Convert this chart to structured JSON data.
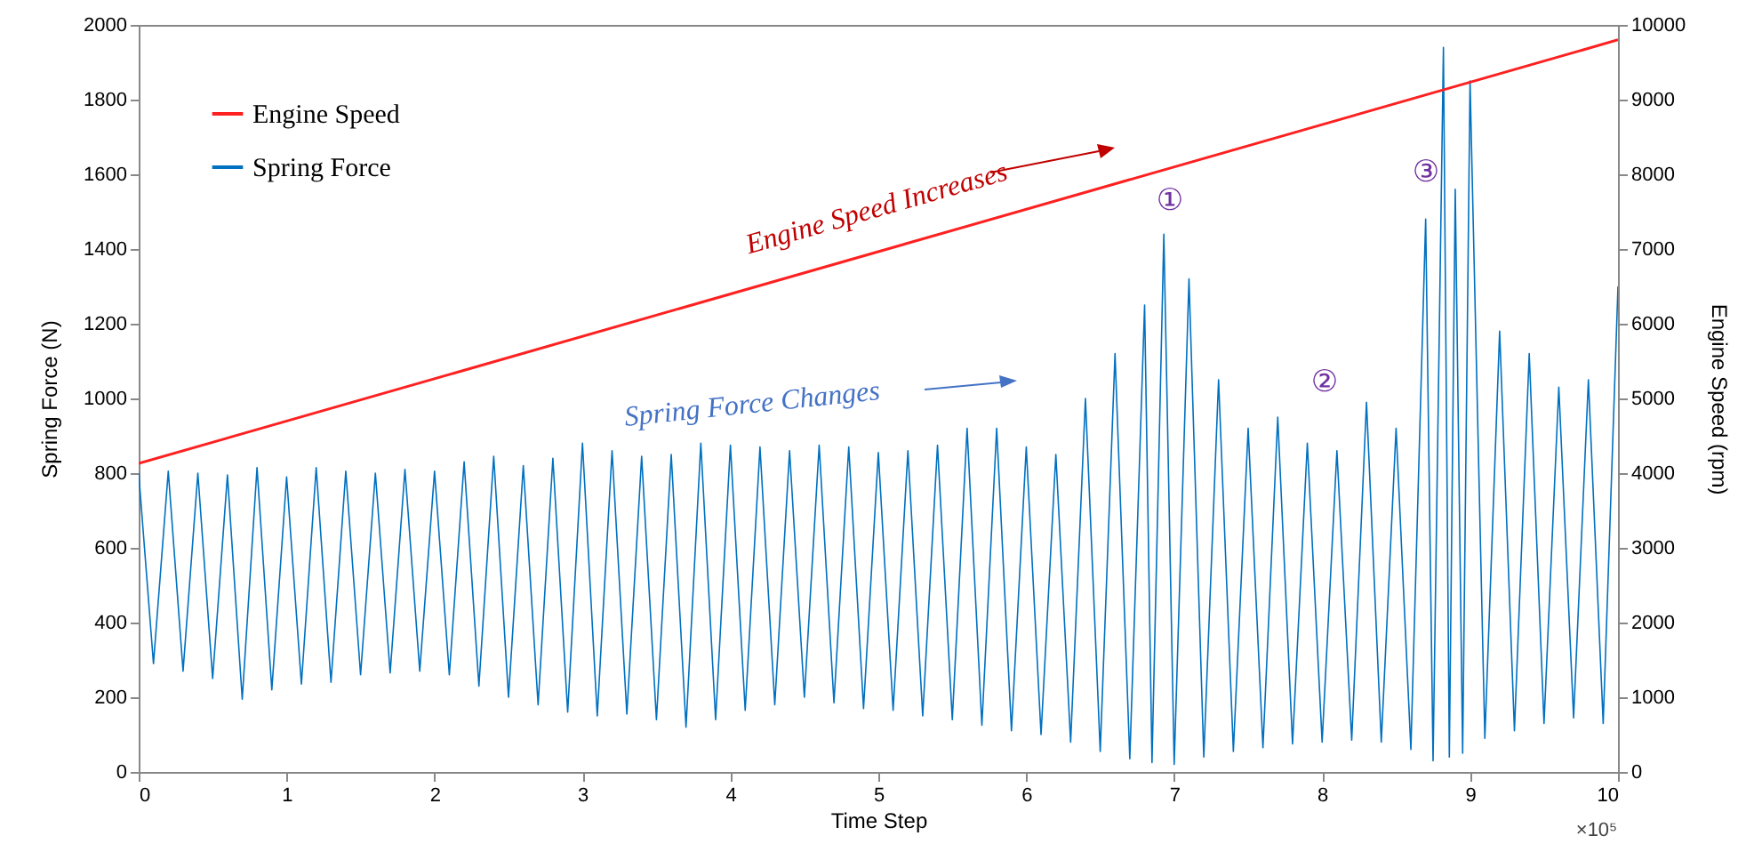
{
  "chart_data": {
    "type": "line",
    "xlabel": "Time Step",
    "ylabel": "Spring Force (N)",
    "y2label": "Engine Speed (rpm)",
    "xlim": [
      0,
      10
    ],
    "xticks": [
      0,
      1,
      2,
      3,
      4,
      5,
      6,
      7,
      8,
      9,
      10
    ],
    "ylim": [
      0,
      2000
    ],
    "yticks": [
      0,
      200,
      400,
      600,
      800,
      1000,
      1200,
      1400,
      1600,
      1800,
      2000
    ],
    "y2lim": [
      0,
      10000
    ],
    "y2ticks": [
      0,
      1000,
      2000,
      3000,
      4000,
      5000,
      6000,
      7000,
      8000,
      9000,
      10000
    ],
    "legend": "top left",
    "line_style": "solid",
    "grid": false,
    "annotations": [
      "Engine Speed Increases",
      "Spring Force Changes",
      "①",
      "②",
      "③",
      "×10⁵"
    ],
    "series": [
      {
        "name": "Engine Speed",
        "color": "#ff2020",
        "axis": "y2",
        "x": [
          0,
          10
        ],
        "values": [
          4130,
          9800
        ]
      },
      {
        "name": "Spring Force",
        "color": "#0070c0",
        "axis": "y",
        "x": [
          0,
          0.1,
          0.2,
          0.3,
          0.4,
          0.5,
          0.6,
          0.7,
          0.8,
          0.9,
          1.0,
          1.1,
          1.2,
          1.3,
          1.4,
          1.5,
          1.6,
          1.7,
          1.8,
          1.9,
          2.0,
          2.1,
          2.2,
          2.3,
          2.4,
          2.5,
          2.6,
          2.7,
          2.8,
          2.9,
          3.0,
          3.1,
          3.2,
          3.3,
          3.4,
          3.5,
          3.6,
          3.7,
          3.8,
          3.9,
          4.0,
          4.1,
          4.2,
          4.3,
          4.4,
          4.5,
          4.6,
          4.7,
          4.8,
          4.9,
          5.0,
          5.1,
          5.2,
          5.3,
          5.4,
          5.5,
          5.6,
          5.7,
          5.8,
          5.9,
          6.0,
          6.1,
          6.2,
          6.3,
          6.4,
          6.5,
          6.6,
          6.7,
          6.8,
          6.85,
          6.93,
          7.0,
          7.1,
          7.2,
          7.3,
          7.4,
          7.5,
          7.6,
          7.7,
          7.8,
          7.9,
          8.0,
          8.1,
          8.2,
          8.3,
          8.4,
          8.5,
          8.6,
          8.7,
          8.75,
          8.82,
          8.86,
          8.9,
          8.95,
          9.0,
          9.1,
          9.2,
          9.3,
          9.4,
          9.5,
          9.6,
          9.7,
          9.8,
          9.9,
          10.0
        ],
        "values": [
          800,
          290,
          805,
          270,
          800,
          250,
          795,
          195,
          815,
          220,
          790,
          235,
          815,
          240,
          805,
          260,
          800,
          265,
          810,
          270,
          805,
          260,
          830,
          230,
          845,
          200,
          820,
          180,
          840,
          160,
          880,
          150,
          860,
          155,
          845,
          140,
          850,
          120,
          880,
          140,
          875,
          165,
          870,
          180,
          860,
          200,
          875,
          185,
          870,
          170,
          855,
          165,
          860,
          150,
          875,
          140,
          920,
          125,
          920,
          110,
          870,
          100,
          850,
          80,
          1000,
          55,
          1120,
          35,
          1250,
          25,
          1440,
          20,
          1320,
          40,
          1050,
          55,
          920,
          65,
          950,
          75,
          880,
          80,
          860,
          85,
          990,
          80,
          920,
          60,
          1480,
          30,
          1940,
          40,
          1560,
          50,
          1850,
          90,
          1180,
          110,
          1120,
          130,
          1030,
          145,
          1050,
          130,
          1300
        ]
      }
    ]
  }
}
